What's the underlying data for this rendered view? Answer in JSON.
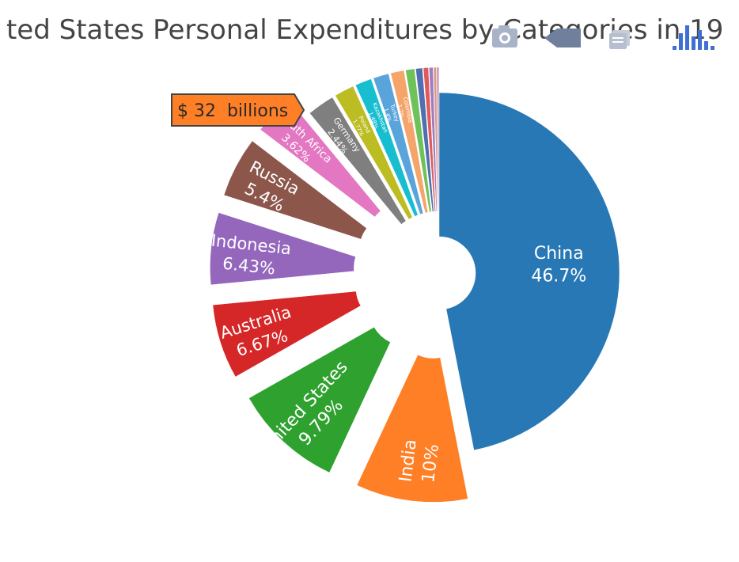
{
  "chart_data": {
    "type": "pie",
    "title": "ted States Personal Expenditures by Categories in 19",
    "slices": [
      {
        "label": "China",
        "percent": 46.7,
        "percent_text": "46.7%",
        "color": "#2878b5"
      },
      {
        "label": "India",
        "percent": 10.0,
        "percent_text": "10%",
        "color": "#fe7f26"
      },
      {
        "label": "United States",
        "percent": 9.79,
        "percent_text": "9.79%",
        "color": "#2ea12f"
      },
      {
        "label": "Australia",
        "percent": 6.67,
        "percent_text": "6.67%",
        "color": "#d62728"
      },
      {
        "label": "Indonesia",
        "percent": 6.43,
        "percent_text": "6.43%",
        "color": "#9467bd"
      },
      {
        "label": "Russia",
        "percent": 5.4,
        "percent_text": "5.4%",
        "color": "#8c564b"
      },
      {
        "label": "South Africa",
        "percent": 3.62,
        "percent_text": "3.62%",
        "color": "#e377c2"
      },
      {
        "label": "Germany",
        "percent": 2.44,
        "percent_text": "2.44%",
        "color": "#7f7f7f"
      },
      {
        "label": "Poland",
        "percent": 1.77,
        "percent_text": "1.77%",
        "color": "#bcbd22"
      },
      {
        "label": "Kazakhstan",
        "percent": 1.48,
        "percent_text": "1.48%",
        "color": "#17becf"
      },
      {
        "label": "Turkey",
        "percent": 1.4,
        "percent_text": "1.4%",
        "color": "#5aa4dc"
      },
      {
        "label": "Colombia",
        "percent": 1.2,
        "percent_text": "1.2%",
        "color": "#f5a56a"
      },
      {
        "label": "",
        "percent": 0.8,
        "percent_text": "",
        "color": "#6fc25a"
      },
      {
        "label": "",
        "percent": 0.6,
        "percent_text": "",
        "color": "#4f6fb0"
      },
      {
        "label": "",
        "percent": 0.45,
        "percent_text": "",
        "color": "#e05a5a"
      },
      {
        "label": "",
        "percent": 0.35,
        "percent_text": "",
        "color": "#a07cc0"
      },
      {
        "label": "",
        "percent": 0.25,
        "percent_text": "",
        "color": "#d69a8a"
      },
      {
        "label": "",
        "percent": 0.2,
        "percent_text": "",
        "color": "#c98ab0"
      }
    ],
    "hover": {
      "slice": "India",
      "text": "$ 32  billions"
    }
  },
  "modebar": {
    "buttons": [
      "camera-icon",
      "pan-icon",
      "reset-icon",
      "plotly-logo-icon"
    ]
  }
}
